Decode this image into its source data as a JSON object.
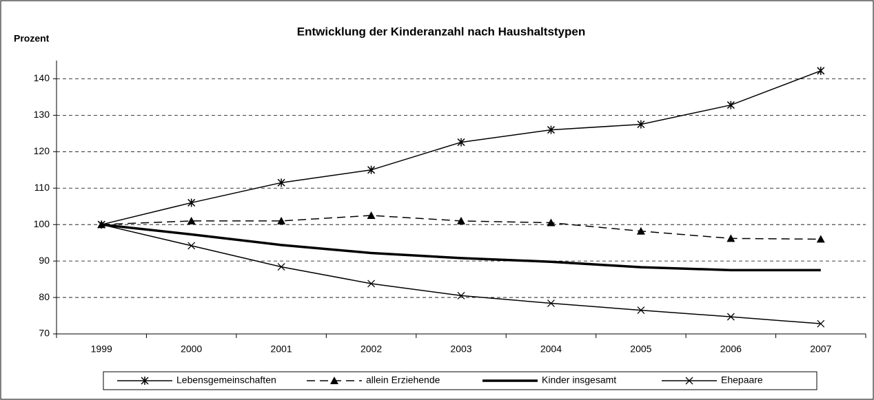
{
  "chart_data": {
    "type": "line",
    "title": "Entwicklung der Kinderanzahl nach Haushaltstypen",
    "y_label": "Prozent",
    "categories": [
      "1999",
      "2000",
      "2001",
      "2002",
      "2003",
      "2004",
      "2005",
      "2006",
      "2007"
    ],
    "ylim": [
      70,
      145
    ],
    "yticks": [
      70,
      80,
      90,
      100,
      110,
      120,
      130,
      140
    ],
    "grid": true,
    "legend": "bottom",
    "series": [
      {
        "name": "Lebensgemeinschaften",
        "color": "#000000",
        "marker": "asterisk",
        "dashed": false,
        "thick": false,
        "values": [
          100,
          106,
          111.5,
          115,
          122.6,
          126,
          127.5,
          132.8,
          142.2
        ]
      },
      {
        "name": "allein Erziehende",
        "color": "#000000",
        "marker": "triangle",
        "dashed": true,
        "thick": false,
        "values": [
          100,
          101,
          101,
          102.5,
          101,
          100.5,
          98.2,
          96.2,
          96
        ]
      },
      {
        "name": "Kinder insgesamt",
        "color": "#000000",
        "marker": "none",
        "dashed": false,
        "thick": true,
        "values": [
          100,
          97.3,
          94.4,
          92.2,
          90.8,
          89.8,
          88.3,
          87.5,
          87.5
        ]
      },
      {
        "name": "Ehepaare",
        "color": "#000000",
        "marker": "x",
        "dashed": false,
        "thick": false,
        "values": [
          100,
          94.2,
          88.4,
          83.8,
          80.5,
          78.4,
          76.5,
          74.7,
          72.8
        ]
      }
    ]
  }
}
